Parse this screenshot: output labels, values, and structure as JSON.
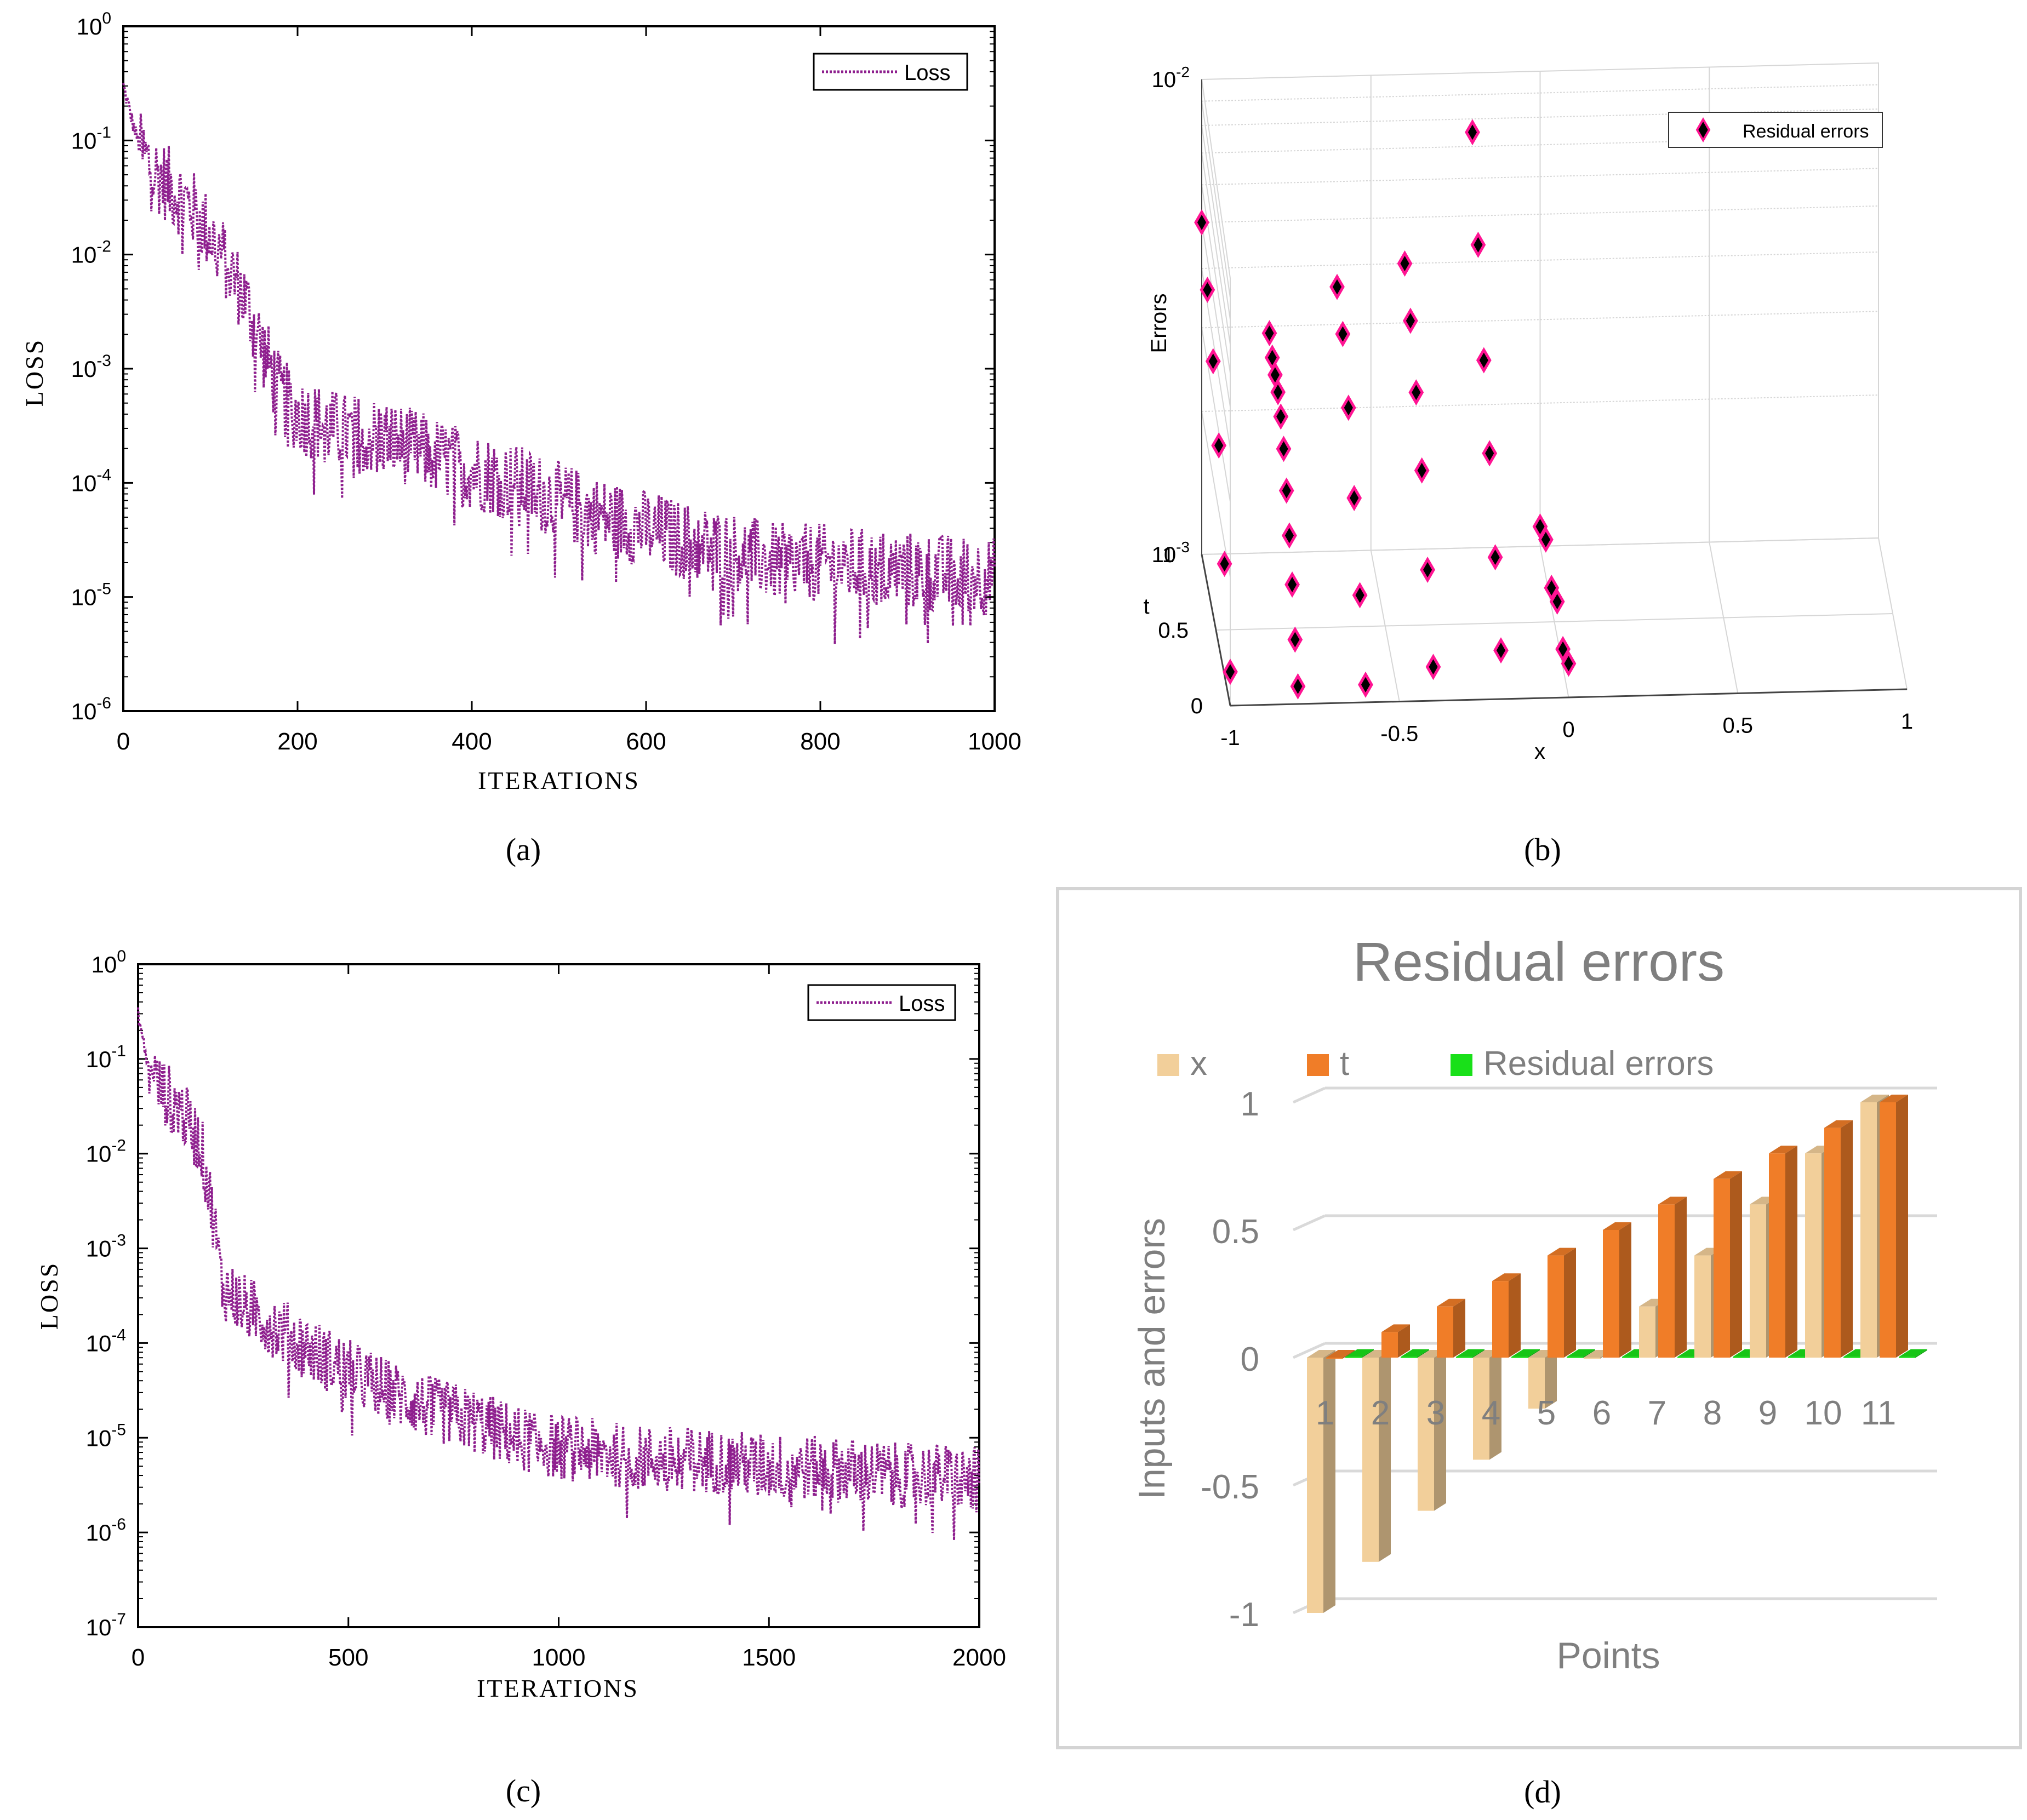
{
  "panels": {
    "a": {
      "label": "(a)"
    },
    "b": {
      "label": "(b)"
    },
    "c": {
      "label": "(c)"
    },
    "d": {
      "label": "(d)"
    }
  },
  "colors": {
    "loss": "#8e1f8e",
    "marker_fill": "#ff1493",
    "marker_edge": "#000000",
    "bar_x": "#f2cf9a",
    "bar_t": "#f07d28",
    "bar_res": "#19e019",
    "axis_grey": "#7f7f7f"
  },
  "chart_data": [
    {
      "panel": "a",
      "type": "line",
      "xlabel": "ITERATIONS",
      "ylabel": "LOSS",
      "yscale": "log",
      "xlim": [
        0,
        1000
      ],
      "ylim": [
        1e-06,
        1
      ],
      "xticks": [
        "0",
        "200",
        "400",
        "600",
        "800",
        "1000"
      ],
      "yticks": [
        {
          "base": "10",
          "exp": "-6"
        },
        {
          "base": "10",
          "exp": "-5"
        },
        {
          "base": "10",
          "exp": "-4"
        },
        {
          "base": "10",
          "exp": "-3"
        },
        {
          "base": "10",
          "exp": "-2"
        },
        {
          "base": "10",
          "exp": "-1"
        },
        {
          "base": "10",
          "exp": "0"
        }
      ],
      "legend": {
        "position": "top-right",
        "entries": [
          "Loss"
        ]
      },
      "grid": false,
      "series": [
        {
          "name": "Loss",
          "style": "dotted",
          "x": [
            0,
            10,
            20,
            40,
            60,
            80,
            100,
            120,
            140,
            160,
            180,
            200,
            250,
            300,
            350,
            400,
            450,
            500,
            550,
            600,
            650,
            700,
            750,
            800,
            850,
            900,
            950,
            1000
          ],
          "y": [
            0.3,
            0.15,
            0.08,
            0.05,
            0.035,
            0.025,
            0.015,
            0.008,
            0.004,
            0.0015,
            0.0006,
            0.0004,
            0.00028,
            0.00025,
            0.00018,
            0.00013,
            0.0001,
            7e-05,
            5e-05,
            4e-05,
            3e-05,
            2.5e-05,
            2e-05,
            2e-05,
            1.8e-05,
            1.7e-05,
            1.6e-05,
            1.5e-05
          ]
        }
      ]
    },
    {
      "panel": "b",
      "type": "scatter",
      "xlabel": "x",
      "ylabel": "t",
      "zlabel": "Errors",
      "zscale": "log",
      "xlim": [
        -1,
        1
      ],
      "ylim": [
        0,
        1
      ],
      "zlim": [
        0.001,
        0.01
      ],
      "xticks": [
        "-1",
        "-0.5",
        "0",
        "0.5",
        "1"
      ],
      "yticks": [
        "0",
        "0.5",
        "1"
      ],
      "zticks": [
        {
          "base": "10",
          "exp": "-3"
        },
        {
          "base": "10",
          "exp": "-2"
        }
      ],
      "legend": {
        "position": "top-right",
        "entries": [
          "Residual errors"
        ]
      },
      "grid": true,
      "series": [
        {
          "name": "Residual errors",
          "points": [
            [
              -1,
              0.0,
              0.0012
            ],
            [
              -1,
              0.2,
              0.0018
            ],
            [
              -1,
              0.4,
              0.0028
            ],
            [
              -1,
              0.6,
              0.0036
            ],
            [
              -1,
              0.8,
              0.0043
            ],
            [
              -1,
              1.0,
              0.005
            ],
            [
              -0.8,
              0.0,
              0.0011
            ],
            [
              -0.8,
              0.1,
              0.0013
            ],
            [
              -0.8,
              0.2,
              0.0016
            ],
            [
              -0.8,
              0.3,
              0.0019
            ],
            [
              -0.8,
              0.4,
              0.0022
            ],
            [
              -0.8,
              0.5,
              0.0025
            ],
            [
              -0.8,
              0.6,
              0.0027
            ],
            [
              -0.8,
              0.7,
              0.0028
            ],
            [
              -0.8,
              0.8,
              0.0028
            ],
            [
              -0.8,
              0.9,
              0.0028
            ],
            [
              -0.8,
              1.0,
              0.0029
            ],
            [
              -0.6,
              0.0,
              0.0011
            ],
            [
              -0.6,
              0.2,
              0.0015
            ],
            [
              -0.6,
              0.4,
              0.0021
            ],
            [
              -0.6,
              0.6,
              0.0028
            ],
            [
              -0.6,
              0.8,
              0.0034
            ],
            [
              -0.6,
              1.0,
              0.0036
            ],
            [
              -0.4,
              0.0,
              0.0012
            ],
            [
              -0.4,
              0.2,
              0.0017
            ],
            [
              -0.4,
              0.4,
              0.0024
            ],
            [
              -0.4,
              0.6,
              0.003
            ],
            [
              -0.4,
              0.8,
              0.0036
            ],
            [
              -0.4,
              1.0,
              0.004
            ],
            [
              -0.2,
              0.0,
              0.0013
            ],
            [
              -0.2,
              0.2,
              0.0018
            ],
            [
              -0.2,
              0.4,
              0.0026
            ],
            [
              -0.2,
              0.6,
              0.0035
            ],
            [
              -0.2,
              0.8,
              0.0052
            ],
            [
              -0.2,
              1.0,
              0.0075
            ],
            [
              0.0,
              0.0,
              0.0012
            ],
            [
              0.0,
              0.2,
              0.0011
            ],
            [
              0.0,
              0.4,
              0.0012
            ],
            [
              0.0,
              0.6,
              0.0011
            ],
            [
              0.0,
              0.8,
              0.0012
            ],
            [
              0.0,
              1.0,
              0.0011
            ]
          ]
        }
      ]
    },
    {
      "panel": "c",
      "type": "line",
      "xlabel": "ITERATIONS",
      "ylabel": "LOSS",
      "yscale": "log",
      "xlim": [
        0,
        2000
      ],
      "ylim": [
        1e-07,
        1
      ],
      "xticks": [
        "0",
        "500",
        "1000",
        "1500",
        "2000"
      ],
      "yticks": [
        {
          "base": "10",
          "exp": "-7"
        },
        {
          "base": "10",
          "exp": "-6"
        },
        {
          "base": "10",
          "exp": "-5"
        },
        {
          "base": "10",
          "exp": "-4"
        },
        {
          "base": "10",
          "exp": "-3"
        },
        {
          "base": "10",
          "exp": "-2"
        },
        {
          "base": "10",
          "exp": "-1"
        },
        {
          "base": "10",
          "exp": "0"
        }
      ],
      "legend": {
        "position": "top-right",
        "entries": [
          "Loss"
        ]
      },
      "grid": false,
      "series": [
        {
          "name": "Loss",
          "style": "dotted",
          "x": [
            0,
            20,
            50,
            100,
            150,
            180,
            200,
            250,
            300,
            400,
            500,
            600,
            700,
            800,
            900,
            1000,
            1100,
            1200,
            1300,
            1400,
            1500,
            1600,
            1700,
            1800,
            1900,
            2000
          ],
          "y": [
            0.3,
            0.1,
            0.05,
            0.03,
            0.012,
            0.002,
            0.0004,
            0.00025,
            0.00018,
            9e-05,
            5e-05,
            3e-05,
            2e-05,
            1.5e-05,
            1e-05,
            8e-06,
            7e-06,
            6e-06,
            6e-06,
            5.5e-06,
            5e-06,
            4.8e-06,
            4.5e-06,
            4e-06,
            4e-06,
            3.5e-06
          ]
        }
      ]
    },
    {
      "panel": "d",
      "type": "bar",
      "title": "Residual errors",
      "xlabel": "Points",
      "ylabel": "Inputs and errors",
      "ylim": [
        -1,
        1
      ],
      "yticks": [
        "-1",
        "-0.5",
        "0",
        "0.5",
        "1"
      ],
      "categories": [
        "1",
        "2",
        "3",
        "4",
        "5",
        "6",
        "7",
        "8",
        "9",
        "10",
        "11"
      ],
      "legend": {
        "position": "top",
        "entries": [
          "x",
          "t",
          "Residual errors"
        ]
      },
      "grid": true,
      "series": [
        {
          "name": "x",
          "values": [
            -1,
            -0.8,
            -0.6,
            -0.4,
            -0.2,
            0,
            0.2,
            0.4,
            0.6,
            0.8,
            1
          ]
        },
        {
          "name": "t",
          "values": [
            0,
            0.1,
            0.2,
            0.3,
            0.4,
            0.5,
            0.6,
            0.7,
            0.8,
            0.9,
            1
          ]
        },
        {
          "name": "Residual errors",
          "values": [
            0.003,
            0.003,
            0.003,
            0.003,
            0.003,
            0.003,
            0.003,
            0.003,
            0.003,
            0.003,
            0.003
          ]
        }
      ]
    }
  ]
}
